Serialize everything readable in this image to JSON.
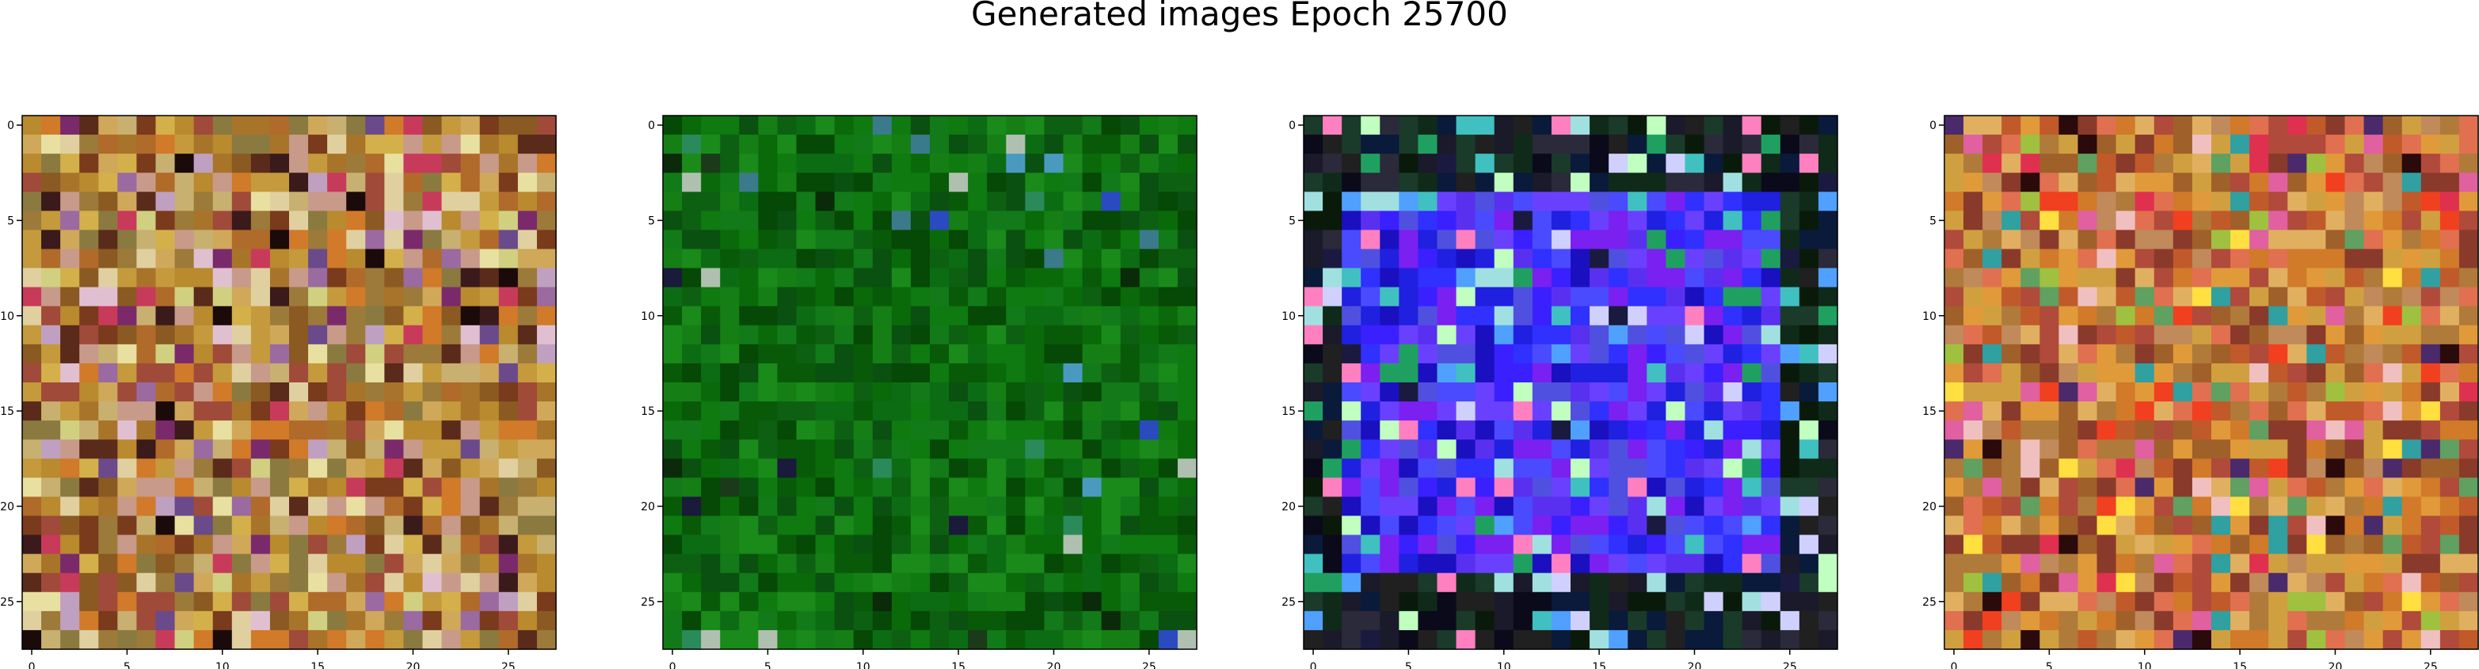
{
  "figure": {
    "title": "Generated images Epoch 25700"
  },
  "chart_data": [
    {
      "type": "heatmap",
      "title": "",
      "xlabel": "",
      "ylabel": "",
      "xlim": [
        -0.5,
        27.5
      ],
      "ylim": [
        27.5,
        -0.5
      ],
      "xticks": [
        0,
        5,
        10,
        15,
        20,
        25
      ],
      "yticks": [
        0,
        5,
        10,
        15,
        20,
        25
      ],
      "grid": false,
      "size": [
        28,
        28
      ],
      "palette": [
        "#c49a3c",
        "#b98a2e",
        "#d0a85a",
        "#a8742a",
        "#8a5a22",
        "#c8b070",
        "#d4b04a",
        "#9c7a3a",
        "#7a3a1c",
        "#b06a2a",
        "#c89a8a",
        "#e0d0a0",
        "#5a2a1a",
        "#a04a3a",
        "#d07a2a",
        "#8a7a40"
      ],
      "accents": [
        "#c83a5a",
        "#7a2a6a",
        "#e0c0d0",
        "#3a1a1a",
        "#9a6aa0",
        "#d0d080",
        "#6a4a8a",
        "#1a0a0a",
        "#c0a0c0",
        "#e8e0a0"
      ],
      "accent_rate": 0.18
    },
    {
      "type": "heatmap",
      "title": "",
      "xlabel": "",
      "ylabel": "",
      "xlim": [
        -0.5,
        27.5
      ],
      "ylim": [
        27.5,
        -0.5
      ],
      "xticks": [
        0,
        5,
        10,
        15,
        20,
        25
      ],
      "yticks": [
        0,
        5,
        10,
        15,
        20,
        25
      ],
      "grid": false,
      "size": [
        28,
        28
      ],
      "palette": [
        "#0a6a0a",
        "#0e7a10",
        "#085a08",
        "#127a18",
        "#0a5010",
        "#1a8a1a",
        "#064806",
        "#0c6c14",
        "#157f15",
        "#0d6012"
      ],
      "accents": [
        "#2a8a5a",
        "#1a1a3a",
        "#4a9ac0",
        "#0a2a0a",
        "#2a4ac0",
        "#b0c0b0",
        "#3a7a8a",
        "#1a3a1a"
      ],
      "accent_rate": 0.06
    },
    {
      "type": "heatmap",
      "title": "",
      "xlabel": "",
      "ylabel": "",
      "xlim": [
        -0.5,
        27.5
      ],
      "ylim": [
        27.5,
        -0.5
      ],
      "xticks": [
        0,
        5,
        10,
        15,
        20,
        25
      ],
      "yticks": [
        0,
        5,
        10,
        15,
        20,
        25
      ],
      "grid": false,
      "size": [
        28,
        28
      ],
      "palette": [
        "#0a0a1a",
        "#0a1a0a",
        "#1a1a2a",
        "#102a1a",
        "#2a2a3a",
        "#1a3a2a",
        "#0a1a3a",
        "#202020"
      ],
      "inner_palette": [
        "#3a20ff",
        "#5a30f0",
        "#2020e0",
        "#6a40ff",
        "#1a10c0",
        "#4a4aff",
        "#7a20f0",
        "#3030ff",
        "#5050e0"
      ],
      "accents": [
        "#40c0c0",
        "#c0ffc0",
        "#ff80c0",
        "#50a0ff",
        "#20a060",
        "#d0d0ff",
        "#1a1a40",
        "#a0e0e0"
      ],
      "accent_rate": 0.2
    },
    {
      "type": "heatmap",
      "title": "",
      "xlabel": "",
      "ylabel": "",
      "xlim": [
        -0.5,
        27.5
      ],
      "ylim": [
        27.5,
        -0.5
      ],
      "xticks": [
        0,
        5,
        10,
        15,
        20,
        25
      ],
      "yticks": [
        0,
        5,
        10,
        15,
        20,
        25
      ],
      "grid": false,
      "size": [
        28,
        28
      ],
      "palette": [
        "#d07a2a",
        "#c05a2a",
        "#e09a3a",
        "#b04a3a",
        "#d0a040",
        "#a0602a",
        "#e0b060",
        "#8a3a2a",
        "#c08a5a",
        "#e07050",
        "#b07a3a"
      ],
      "accents": [
        "#ffe040",
        "#e03050",
        "#f0c0c0",
        "#30a0a0",
        "#2a0a0a",
        "#e060a0",
        "#a0c040",
        "#4a2a6a",
        "#f04020",
        "#60a060"
      ],
      "accent_rate": 0.2
    }
  ]
}
